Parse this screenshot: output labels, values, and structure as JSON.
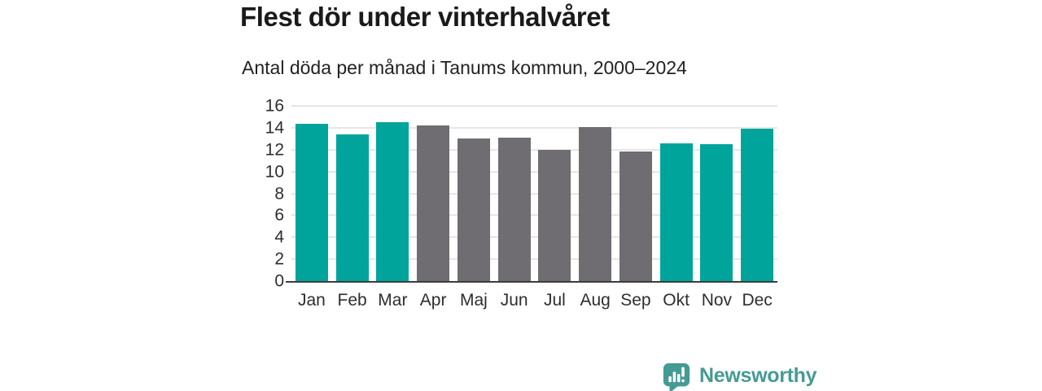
{
  "header": {
    "title": "Flest dör under vinterhalvåret",
    "subtitle": "Antal döda per månad i Tanums kommun, 2000–2024"
  },
  "chart_data": {
    "type": "bar",
    "title": "Flest dör under vinterhalvåret",
    "subtitle": "Antal döda per månad i Tanums kommun, 2000–2024",
    "categories": [
      "Jan",
      "Feb",
      "Mar",
      "Apr",
      "Maj",
      "Jun",
      "Jul",
      "Aug",
      "Sep",
      "Okt",
      "Nov",
      "Dec"
    ],
    "values": [
      14.4,
      13.4,
      14.5,
      14.2,
      13.0,
      13.1,
      12.0,
      14.1,
      11.8,
      12.6,
      12.5,
      13.9
    ],
    "bar_palette": [
      "teal",
      "teal",
      "teal",
      "gray",
      "gray",
      "gray",
      "gray",
      "gray",
      "gray",
      "teal",
      "teal",
      "teal"
    ],
    "palette": {
      "teal": "#00a49b",
      "gray": "#6f6d71"
    },
    "ylim": [
      0,
      16
    ],
    "yticks": [
      0,
      2,
      4,
      6,
      8,
      10,
      12,
      14,
      16
    ],
    "grid": "horizontal",
    "legend": "none",
    "xlabel": "",
    "ylabel": ""
  },
  "branding": {
    "name": "Newsworthy",
    "color": "#459b94",
    "icon": "bar-chart-speech-bubble-icon"
  },
  "colors": {
    "background": "#ffffff",
    "title_text": "#1a1a1a",
    "subtitle_text": "#222222",
    "axis_text": "#2e2e2e",
    "gridline": "#e6e6e6",
    "axis_line": "#3c3c3c"
  }
}
